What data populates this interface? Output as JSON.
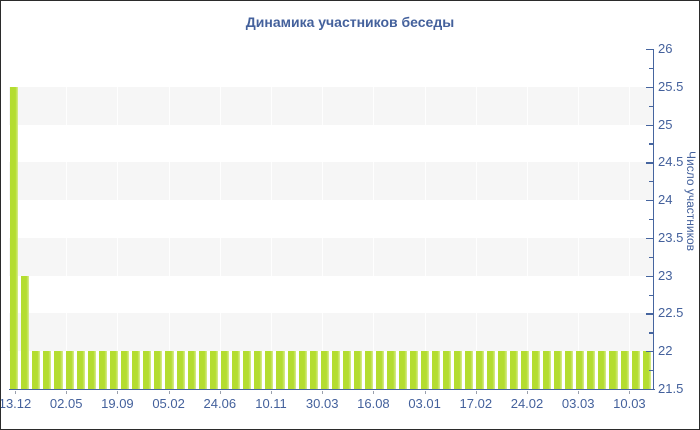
{
  "colors": {
    "background": "#ffffff",
    "border": "#2b2b2b",
    "title_text": "#44619c",
    "axis_text": "#44619c",
    "axis_line": "#46659f",
    "bar_main": "#b4dd30",
    "bar_highlight": "#d9ec92",
    "band": "#f6f6f6",
    "x_tick": "#9aa0ad"
  },
  "chart_data": {
    "type": "bar",
    "title": "Динамика участников беседы",
    "xlabel": "",
    "ylabel": "Число участников",
    "ylim": [
      21.5,
      26
    ],
    "y_major_step": 0.5,
    "y_minor_step": 0.25,
    "grid": "alternating horizontal bands, faint vertical lines at date ticks",
    "legend": "none",
    "y_axis_position": "right",
    "y_tick_labels": [
      "26",
      "25.5",
      "25",
      "24.5",
      "24",
      "23.5",
      "23",
      "22.5",
      "22",
      "21.5"
    ],
    "x_tick_labels": [
      "13.12",
      "02.05",
      "19.09",
      "05.02",
      "24.06",
      "10.11",
      "30.03",
      "16.08",
      "03.01",
      "17.02",
      "24.02",
      "03.03",
      "10.03"
    ],
    "values": [
      25.5,
      23,
      22,
      22,
      22,
      22,
      22,
      22,
      22,
      22,
      22,
      22,
      22,
      22,
      22,
      22,
      22,
      22,
      22,
      22,
      22,
      22,
      22,
      22,
      22,
      22,
      22,
      22,
      22,
      22,
      22,
      22,
      22,
      22,
      22,
      22,
      22,
      22,
      22,
      22,
      22,
      22,
      22,
      22,
      22,
      22,
      22,
      22,
      22,
      22,
      22,
      22,
      22,
      22,
      22,
      22,
      22,
      22
    ]
  }
}
